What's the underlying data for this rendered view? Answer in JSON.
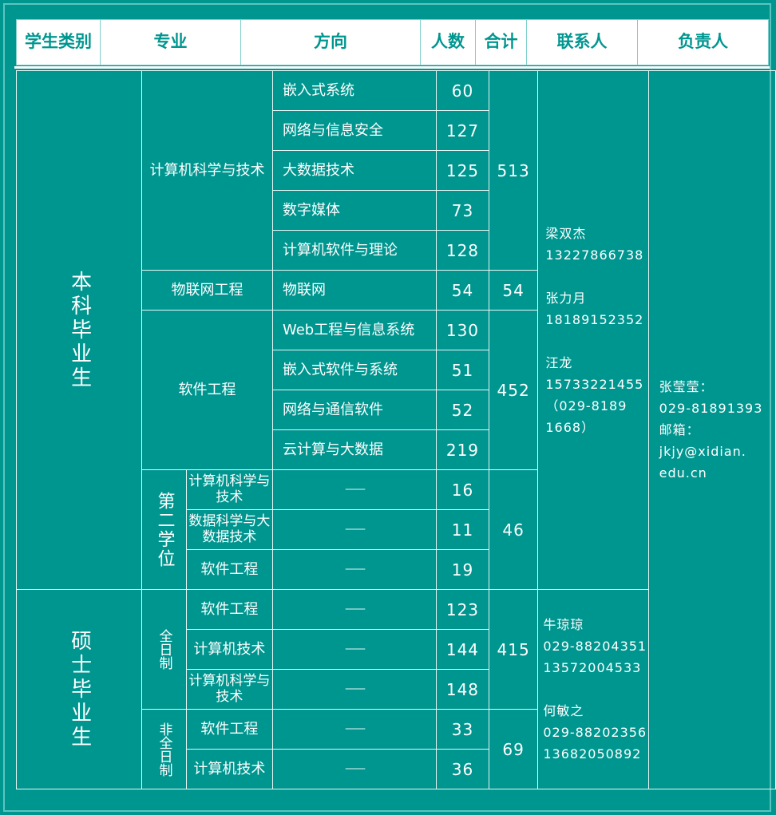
{
  "header": [
    "学生类别",
    "专业",
    "方向",
    "人数",
    "合计",
    "联系人",
    "负责人"
  ],
  "undergrad": {
    "label": "本科毕业生",
    "cs": {
      "major": "计算机科学与技术",
      "total": "513",
      "rows": [
        [
          "嵌入式系统",
          "60"
        ],
        [
          "网络与信息安全",
          "127"
        ],
        [
          "大数据技术",
          "125"
        ],
        [
          "数字媒体",
          "73"
        ],
        [
          "计算机软件与理论",
          "128"
        ]
      ]
    },
    "iot": {
      "major": "物联网工程",
      "direction": "物联网",
      "count": "54",
      "total": "54"
    },
    "se": {
      "major": "软件工程",
      "total": "452",
      "rows": [
        [
          "Web工程与信息系统",
          "130"
        ],
        [
          "嵌入式软件与系统",
          "51"
        ],
        [
          "网络与通信软件",
          "52"
        ],
        [
          "云计算与大数据",
          "219"
        ]
      ]
    },
    "second": {
      "label": "第二学位",
      "total": "46",
      "rows": [
        [
          "计算机科学与技术",
          "——",
          "16"
        ],
        [
          "数据科学与大数据技术",
          "——",
          "11"
        ],
        [
          "软件工程",
          "——",
          "19"
        ]
      ]
    },
    "contacts": [
      "梁双杰",
      "13227866738",
      "",
      "张力月",
      "18189152352",
      "",
      "汪龙",
      "15733221455",
      "（029-8189",
      "1668）"
    ]
  },
  "master": {
    "label": "硕士毕业生",
    "fulltime": {
      "label": "全日制",
      "total": "415",
      "rows": [
        [
          "软件工程",
          "——",
          "123"
        ],
        [
          "计算机技术",
          "——",
          "144"
        ],
        [
          "计算机科学与技术",
          "——",
          "148"
        ]
      ]
    },
    "parttime": {
      "label": "非全日制",
      "total": "69",
      "rows": [
        [
          "软件工程",
          "——",
          "33"
        ],
        [
          "计算机技术",
          "——",
          "36"
        ]
      ]
    },
    "contacts": [
      "牛琼琼",
      "029-88204351",
      "13572004533",
      "",
      "何敏之",
      "029-88202356",
      "13682050892"
    ]
  },
  "responsible": [
    "张莹莹：",
    "029-81891393",
    "邮箱：",
    "jkjy@xidian.",
    "edu.cn"
  ],
  "colors": {
    "background": "#009690",
    "lines": "#ffffff",
    "header_text": "#009690"
  }
}
